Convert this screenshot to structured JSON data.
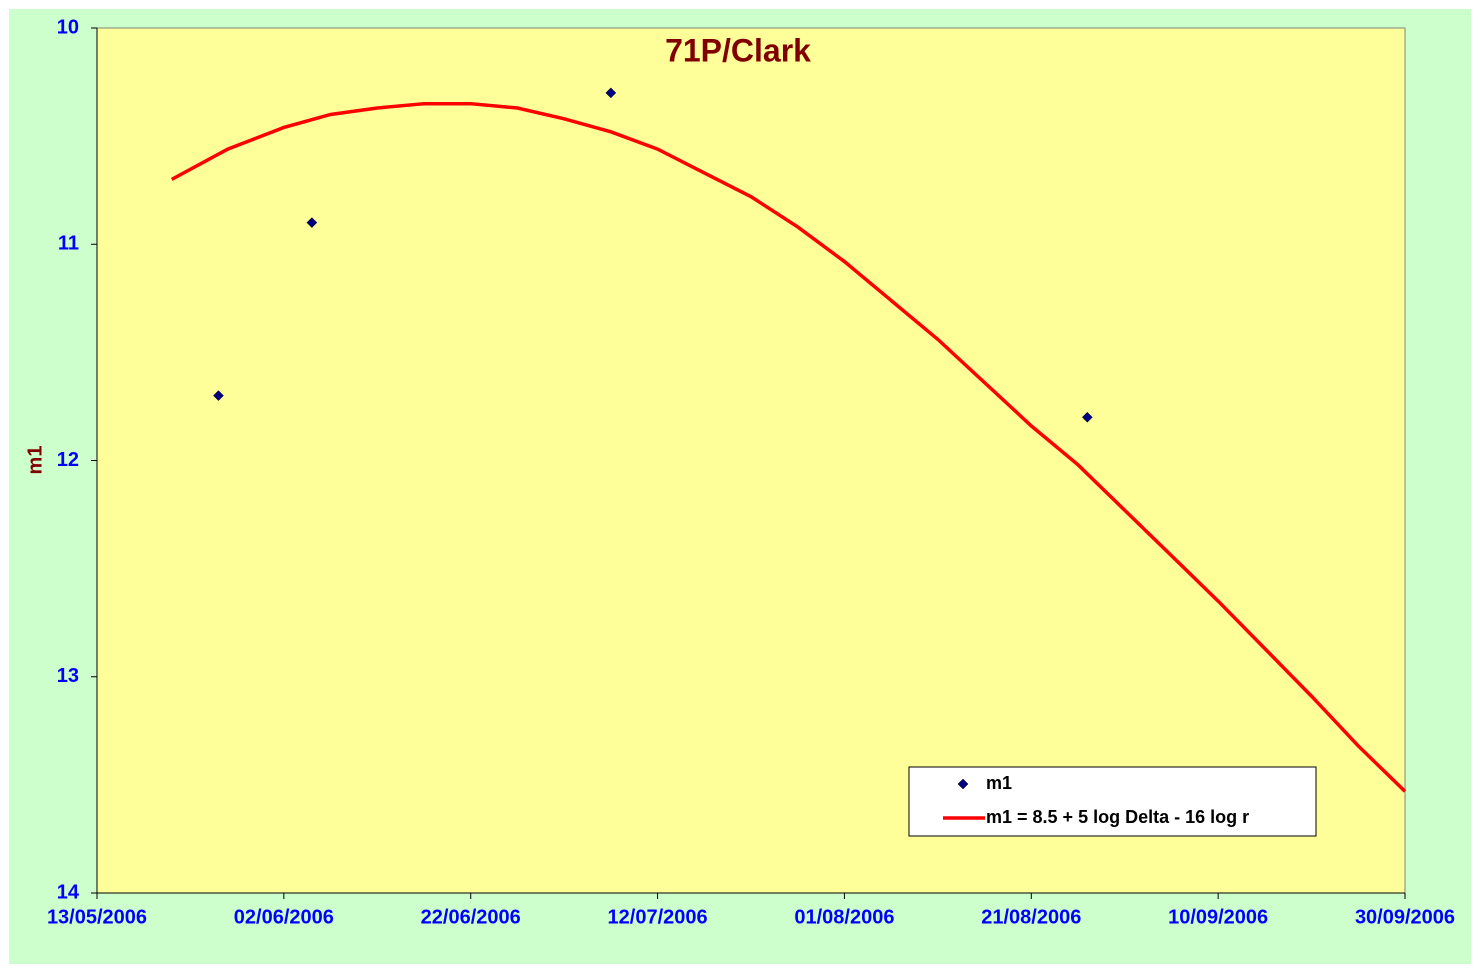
{
  "chart_data": {
    "type": "scatter",
    "title": "71P/Clark",
    "ylabel": "m1",
    "xlim": [
      "13/05/2006",
      "30/09/2006"
    ],
    "xticks": [
      "13/05/2006",
      "02/06/2006",
      "22/06/2006",
      "12/07/2006",
      "01/08/2006",
      "21/08/2006",
      "10/09/2006",
      "30/09/2006"
    ],
    "ylim": [
      10,
      14
    ],
    "yticks": [
      10,
      11,
      12,
      13,
      14
    ],
    "y_inverted": true,
    "legend": "lower right",
    "series": [
      {
        "name": "m1",
        "kind": "scatter",
        "color": "#000080",
        "x": [
          "26/05/2006",
          "05/06/2006",
          "07/07/2006",
          "27/08/2006"
        ],
        "values": [
          11.7,
          10.9,
          10.3,
          11.8
        ]
      },
      {
        "name": "m1 = 8.5 + 5 log Delta - 16 log r",
        "kind": "line",
        "color": "#ff0000",
        "x": [
          "21/05/2006",
          "27/05/2006",
          "02/06/2006",
          "07/06/2006",
          "12/06/2006",
          "17/06/2006",
          "22/06/2006",
          "27/06/2006",
          "02/07/2006",
          "07/07/2006",
          "12/07/2006",
          "17/07/2006",
          "22/07/2006",
          "27/07/2006",
          "01/08/2006",
          "06/08/2006",
          "11/08/2006",
          "16/08/2006",
          "21/08/2006",
          "26/08/2006",
          "31/08/2006",
          "05/09/2006",
          "10/09/2006",
          "15/09/2006",
          "20/09/2006",
          "25/09/2006",
          "30/09/2006"
        ],
        "values": [
          10.7,
          10.56,
          10.46,
          10.4,
          10.37,
          10.35,
          10.35,
          10.37,
          10.42,
          10.48,
          10.56,
          10.67,
          10.78,
          10.92,
          11.08,
          11.26,
          11.44,
          11.64,
          11.84,
          12.02,
          12.23,
          12.44,
          12.65,
          12.87,
          13.09,
          13.32,
          13.53
        ]
      }
    ]
  }
}
